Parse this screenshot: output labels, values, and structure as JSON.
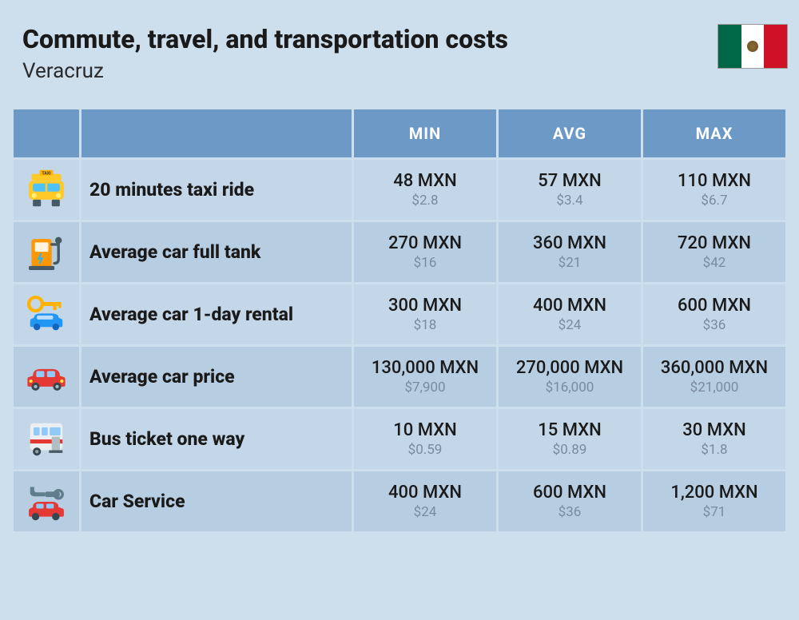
{
  "header": {
    "title": "Commute, travel, and transportation costs",
    "subtitle": "Veracruz",
    "flag_colors": {
      "green": "#006847",
      "white": "#ffffff",
      "red": "#ce1126"
    }
  },
  "table": {
    "columns": [
      "",
      "",
      "MIN",
      "AVG",
      "MAX"
    ],
    "header_bg": "#6c99c6",
    "header_text_color": "#ffffff",
    "row_bg_odd": "#c3d7e9",
    "row_bg_even": "#b7cde2",
    "rows": [
      {
        "icon": "taxi",
        "label": "20 minutes taxi ride",
        "min": {
          "mxn": "48 MXN",
          "usd": "$2.8"
        },
        "avg": {
          "mxn": "57 MXN",
          "usd": "$3.4"
        },
        "max": {
          "mxn": "110 MXN",
          "usd": "$6.7"
        }
      },
      {
        "icon": "fuel-pump",
        "label": "Average car full tank",
        "min": {
          "mxn": "270 MXN",
          "usd": "$16"
        },
        "avg": {
          "mxn": "360 MXN",
          "usd": "$21"
        },
        "max": {
          "mxn": "720 MXN",
          "usd": "$42"
        }
      },
      {
        "icon": "car-key",
        "label": "Average car 1-day rental",
        "min": {
          "mxn": "300 MXN",
          "usd": "$18"
        },
        "avg": {
          "mxn": "400 MXN",
          "usd": "$24"
        },
        "max": {
          "mxn": "600 MXN",
          "usd": "$36"
        }
      },
      {
        "icon": "car",
        "label": "Average car price",
        "min": {
          "mxn": "130,000 MXN",
          "usd": "$7,900"
        },
        "avg": {
          "mxn": "270,000 MXN",
          "usd": "$16,000"
        },
        "max": {
          "mxn": "360,000 MXN",
          "usd": "$21,000"
        }
      },
      {
        "icon": "bus",
        "label": "Bus ticket one way",
        "min": {
          "mxn": "10 MXN",
          "usd": "$0.59"
        },
        "avg": {
          "mxn": "15 MXN",
          "usd": "$0.89"
        },
        "max": {
          "mxn": "30 MXN",
          "usd": "$1.8"
        }
      },
      {
        "icon": "car-service",
        "label": "Car Service",
        "min": {
          "mxn": "400 MXN",
          "usd": "$24"
        },
        "avg": {
          "mxn": "600 MXN",
          "usd": "$36"
        },
        "max": {
          "mxn": "1,200 MXN",
          "usd": "$71"
        }
      }
    ]
  },
  "style": {
    "page_bg": "#cddeed",
    "title_fontsize": 32,
    "subtitle_fontsize": 26,
    "val_main_color": "#1a1a1a",
    "val_sub_color": "#7a8aa0",
    "label_fontsize": 23,
    "val_main_fontsize": 22,
    "val_sub_fontsize": 17
  }
}
